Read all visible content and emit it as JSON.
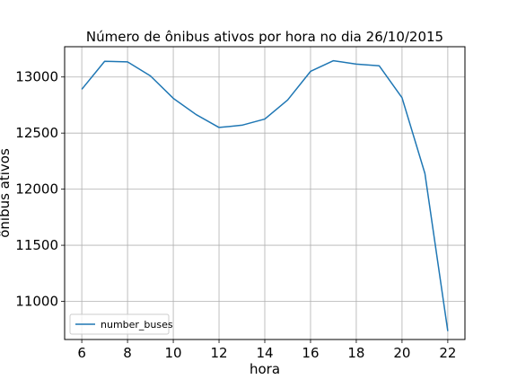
{
  "chart_data": {
    "type": "line",
    "title": "Número de ônibus ativos por hora no dia 26/10/2015",
    "xlabel": "hora",
    "ylabel": "ônibus ativos",
    "x": [
      6,
      7,
      8,
      9,
      10,
      11,
      12,
      13,
      14,
      15,
      16,
      17,
      18,
      19,
      20,
      21,
      22
    ],
    "series": [
      {
        "name": "number_buses",
        "color": "#1f77b4",
        "values": [
          12890,
          13140,
          13135,
          13010,
          12810,
          12665,
          12550,
          12570,
          12625,
          12795,
          13050,
          13145,
          13115,
          13100,
          12815,
          12140,
          10735
        ]
      }
    ],
    "xlim": [
      5.25,
      22.75
    ],
    "ylim": [
      10660,
      13270
    ],
    "xticks": [
      "6",
      "8",
      "10",
      "12",
      "14",
      "16",
      "18",
      "20",
      "22"
    ],
    "yticks": [
      "11000",
      "11500",
      "12000",
      "12500",
      "13000"
    ],
    "grid": true,
    "legend_position": "lower-left"
  }
}
